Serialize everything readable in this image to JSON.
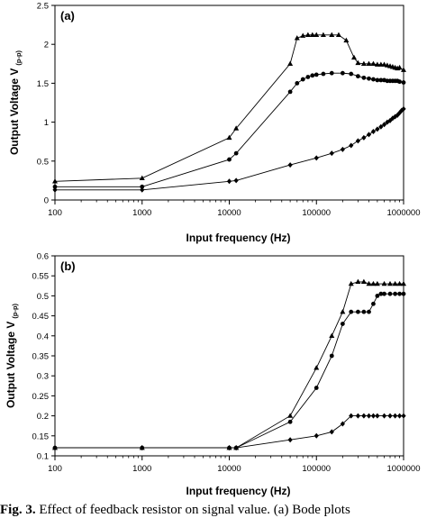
{
  "chart_data": [
    {
      "type": "line",
      "panel_label": "(a)",
      "xlabel": "Input frequency (Hz)",
      "ylabel_main": "Output Voltage V",
      "ylabel_sub": "(p-p)",
      "x_scale": "log",
      "xlim": [
        100,
        1000000
      ],
      "ylim": [
        0,
        2.5
      ],
      "x_ticks": [
        "100",
        "1000",
        "10000",
        "100000",
        "1000000"
      ],
      "y_ticks": [
        "0",
        "0.5",
        "1",
        "1.5",
        "2",
        "2.5"
      ],
      "grid": false,
      "series": [
        {
          "marker": "triangle",
          "points": [
            [
              100,
              0.24
            ],
            [
              1000,
              0.28
            ],
            [
              10000,
              0.8
            ],
            [
              12000,
              0.92
            ],
            [
              50000,
              1.75
            ],
            [
              60000,
              2.08
            ],
            [
              70000,
              2.11
            ],
            [
              80000,
              2.12
            ],
            [
              90000,
              2.12
            ],
            [
              100000,
              2.12
            ],
            [
              120000,
              2.12
            ],
            [
              150000,
              2.12
            ],
            [
              180000,
              2.12
            ],
            [
              220000,
              2.05
            ],
            [
              270000,
              1.83
            ],
            [
              300000,
              1.76
            ],
            [
              350000,
              1.75
            ],
            [
              400000,
              1.75
            ],
            [
              450000,
              1.75
            ],
            [
              500000,
              1.74
            ],
            [
              550000,
              1.74
            ],
            [
              600000,
              1.74
            ],
            [
              650000,
              1.73
            ],
            [
              700000,
              1.72
            ],
            [
              750000,
              1.71
            ],
            [
              800000,
              1.7
            ],
            [
              850000,
              1.69
            ],
            [
              900000,
              1.7
            ],
            [
              1000000,
              1.67
            ]
          ]
        },
        {
          "marker": "circle",
          "points": [
            [
              100,
              0.17
            ],
            [
              1000,
              0.17
            ],
            [
              10000,
              0.52
            ],
            [
              12000,
              0.6
            ],
            [
              50000,
              1.39
            ],
            [
              60000,
              1.5
            ],
            [
              70000,
              1.55
            ],
            [
              80000,
              1.58
            ],
            [
              90000,
              1.6
            ],
            [
              100000,
              1.61
            ],
            [
              120000,
              1.62
            ],
            [
              150000,
              1.63
            ],
            [
              200000,
              1.63
            ],
            [
              250000,
              1.62
            ],
            [
              300000,
              1.59
            ],
            [
              350000,
              1.57
            ],
            [
              400000,
              1.56
            ],
            [
              450000,
              1.55
            ],
            [
              500000,
              1.54
            ],
            [
              550000,
              1.54
            ],
            [
              600000,
              1.54
            ],
            [
              650000,
              1.53
            ],
            [
              700000,
              1.53
            ],
            [
              750000,
              1.53
            ],
            [
              800000,
              1.53
            ],
            [
              850000,
              1.53
            ],
            [
              900000,
              1.52
            ],
            [
              1000000,
              1.51
            ]
          ]
        },
        {
          "marker": "diamond",
          "points": [
            [
              100,
              0.13
            ],
            [
              1000,
              0.13
            ],
            [
              10000,
              0.24
            ],
            [
              12000,
              0.25
            ],
            [
              50000,
              0.45
            ],
            [
              100000,
              0.54
            ],
            [
              150000,
              0.6
            ],
            [
              200000,
              0.65
            ],
            [
              250000,
              0.7
            ],
            [
              300000,
              0.76
            ],
            [
              350000,
              0.8
            ],
            [
              400000,
              0.84
            ],
            [
              450000,
              0.88
            ],
            [
              500000,
              0.91
            ],
            [
              550000,
              0.94
            ],
            [
              600000,
              0.97
            ],
            [
              650000,
              1.0
            ],
            [
              700000,
              1.02
            ],
            [
              750000,
              1.05
            ],
            [
              800000,
              1.07
            ],
            [
              850000,
              1.09
            ],
            [
              900000,
              1.12
            ],
            [
              950000,
              1.15
            ],
            [
              1000000,
              1.17
            ]
          ]
        }
      ]
    },
    {
      "type": "line",
      "panel_label": "(b)",
      "xlabel": "Input frequency (Hz)",
      "ylabel_main": "Output Voltage V",
      "ylabel_sub": "(p-p)",
      "x_scale": "log",
      "xlim": [
        100,
        1000000
      ],
      "ylim": [
        0.1,
        0.6
      ],
      "x_ticks": [
        "100",
        "1000",
        "10000",
        "100000",
        "1000000"
      ],
      "y_ticks": [
        "0.1",
        "0.15",
        "0.2",
        "0.25",
        "0.3",
        "0.35",
        "0.4",
        "0.45",
        "0.5",
        "0.55",
        "0.6"
      ],
      "grid": false,
      "series": [
        {
          "marker": "triangle",
          "points": [
            [
              100,
              0.12
            ],
            [
              1000,
              0.12
            ],
            [
              10000,
              0.12
            ],
            [
              12000,
              0.12
            ],
            [
              50000,
              0.2
            ],
            [
              100000,
              0.32
            ],
            [
              150000,
              0.4
            ],
            [
              200000,
              0.46
            ],
            [
              250000,
              0.53
            ],
            [
              300000,
              0.535
            ],
            [
              350000,
              0.535
            ],
            [
              400000,
              0.53
            ],
            [
              450000,
              0.53
            ],
            [
              500000,
              0.53
            ],
            [
              600000,
              0.53
            ],
            [
              700000,
              0.53
            ],
            [
              800000,
              0.53
            ],
            [
              900000,
              0.53
            ],
            [
              1000000,
              0.53
            ]
          ]
        },
        {
          "marker": "circle",
          "points": [
            [
              100,
              0.12
            ],
            [
              1000,
              0.12
            ],
            [
              10000,
              0.12
            ],
            [
              12000,
              0.12
            ],
            [
              50000,
              0.185
            ],
            [
              100000,
              0.27
            ],
            [
              150000,
              0.35
            ],
            [
              200000,
              0.43
            ],
            [
              250000,
              0.46
            ],
            [
              300000,
              0.46
            ],
            [
              350000,
              0.46
            ],
            [
              400000,
              0.46
            ],
            [
              450000,
              0.48
            ],
            [
              500000,
              0.5
            ],
            [
              550000,
              0.505
            ],
            [
              600000,
              0.505
            ],
            [
              700000,
              0.505
            ],
            [
              800000,
              0.505
            ],
            [
              900000,
              0.505
            ],
            [
              1000000,
              0.505
            ]
          ]
        },
        {
          "marker": "diamond",
          "points": [
            [
              100,
              0.12
            ],
            [
              1000,
              0.12
            ],
            [
              10000,
              0.12
            ],
            [
              12000,
              0.12
            ],
            [
              50000,
              0.14
            ],
            [
              100000,
              0.15
            ],
            [
              150000,
              0.16
            ],
            [
              200000,
              0.18
            ],
            [
              250000,
              0.2
            ],
            [
              300000,
              0.2
            ],
            [
              350000,
              0.2
            ],
            [
              400000,
              0.2
            ],
            [
              450000,
              0.2
            ],
            [
              500000,
              0.2
            ],
            [
              600000,
              0.2
            ],
            [
              700000,
              0.2
            ],
            [
              800000,
              0.2
            ],
            [
              900000,
              0.2
            ],
            [
              1000000,
              0.2
            ]
          ]
        }
      ]
    }
  ],
  "caption": {
    "label": "Fig. 3.",
    "text": "Effect of feedback resistor on signal value. (a) Bode plots"
  }
}
